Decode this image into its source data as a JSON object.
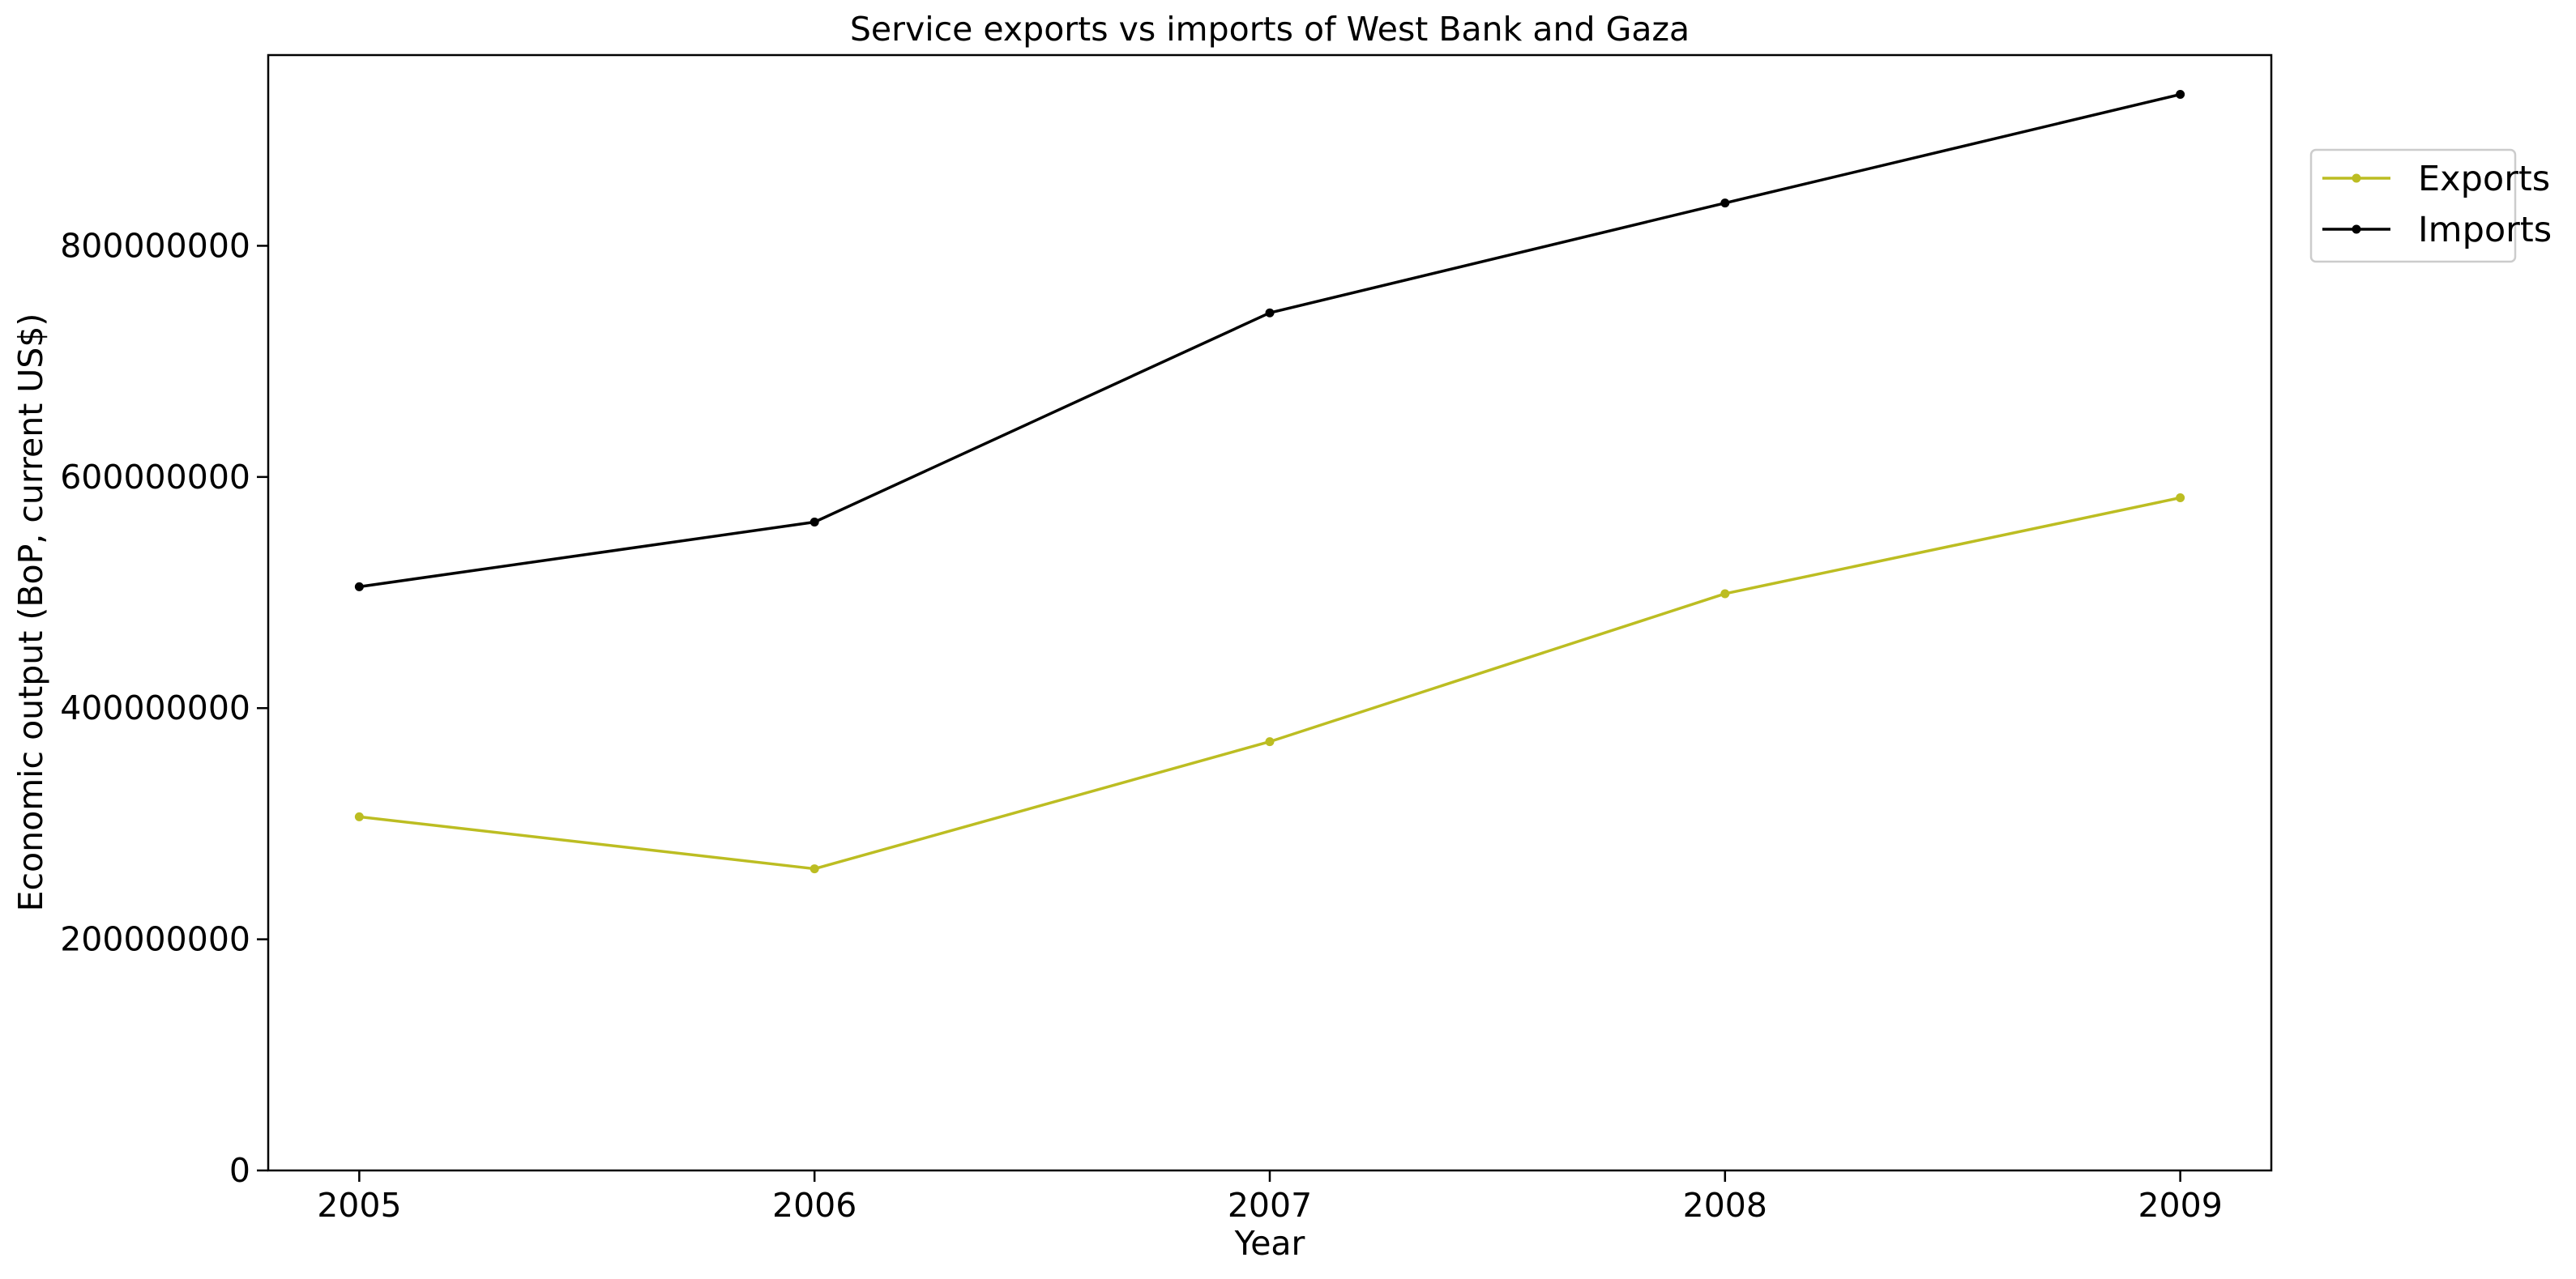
{
  "chart_data": {
    "type": "line",
    "title": "Service exports vs imports of West Bank and Gaza",
    "xlabel": "Year",
    "ylabel": "Economic output (BoP, current US$)",
    "categories": [
      "2005",
      "2006",
      "2007",
      "2008",
      "2009"
    ],
    "x": [
      2005,
      2006,
      2007,
      2008,
      2009
    ],
    "xlim": [
      2004.8,
      2009.2
    ],
    "ylim": [
      0,
      965000000
    ],
    "yticks": [
      0,
      200000000,
      400000000,
      600000000,
      800000000
    ],
    "ytick_labels": [
      "0",
      "200000000",
      "400000000",
      "600000000",
      "800000000"
    ],
    "grid": false,
    "legend_position": "outside top-right",
    "series": [
      {
        "name": "Exports",
        "color": "#bcbd22",
        "marker": "circle",
        "values": [
          306000000,
          261000000,
          371000000,
          499000000,
          582000000
        ]
      },
      {
        "name": "Imports",
        "color": "#000000",
        "marker": "circle",
        "values": [
          505000000,
          561000000,
          742000000,
          837000000,
          931000000
        ]
      }
    ]
  }
}
